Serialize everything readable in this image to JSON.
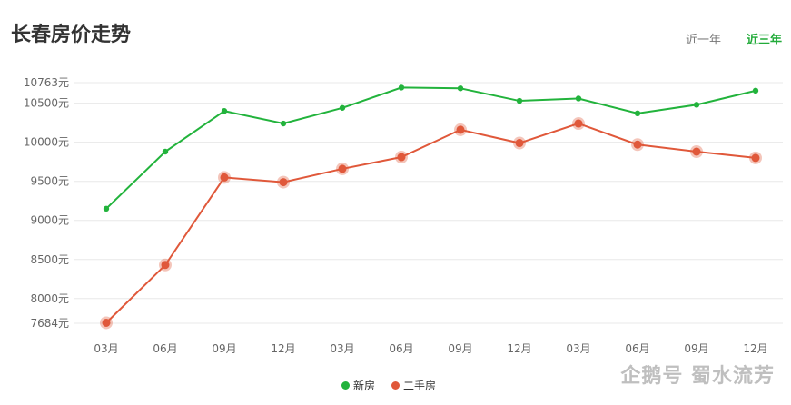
{
  "header": {
    "title": "长春房价走势",
    "tabs": [
      {
        "label": "近一年",
        "active": false
      },
      {
        "label": "近三年",
        "active": true
      }
    ]
  },
  "watermark": "企鹅号 蜀水流芳",
  "colors": {
    "new": "#22b33c",
    "second": "#e0583a",
    "grid": "#e8e8e8",
    "active_tab": "#22ab3a"
  },
  "chart_data": {
    "type": "line",
    "title": "长春房价走势",
    "categories": [
      "03月",
      "06月",
      "09月",
      "12月",
      "03月",
      "06月",
      "09月",
      "12月",
      "03月",
      "06月",
      "09月",
      "12月"
    ],
    "y_ticks": [
      {
        "value": 10763,
        "label": "10763元"
      },
      {
        "value": 10500,
        "label": "10500元"
      },
      {
        "value": 10000,
        "label": "10000元"
      },
      {
        "value": 9500,
        "label": "9500元"
      },
      {
        "value": 9000,
        "label": "9000元"
      },
      {
        "value": 8500,
        "label": "8500元"
      },
      {
        "value": 8000,
        "label": "8000元"
      },
      {
        "value": 7684,
        "label": "7684元"
      }
    ],
    "ylim": [
      7684,
      10763
    ],
    "grid": true,
    "legend_position": "bottom",
    "series": [
      {
        "name": "新房",
        "color": "#22b33c",
        "values": [
          9150,
          9880,
          10400,
          10240,
          10440,
          10700,
          10690,
          10530,
          10560,
          10370,
          10480,
          10660
        ]
      },
      {
        "name": "二手房",
        "color": "#e0583a",
        "values": [
          7690,
          8430,
          9550,
          9490,
          9660,
          9810,
          10160,
          9990,
          10240,
          9970,
          9880,
          9800
        ]
      }
    ]
  }
}
